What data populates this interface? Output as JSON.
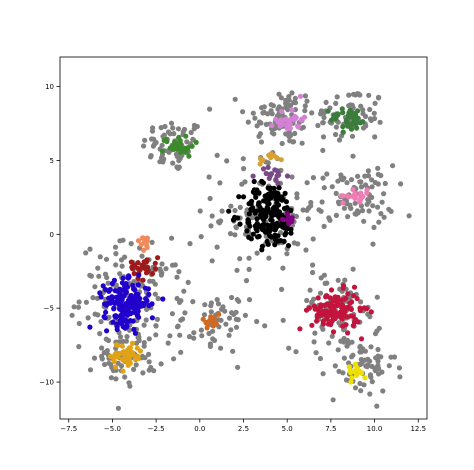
{
  "chart_data": {
    "type": "scatter",
    "title": "",
    "xlabel": "",
    "ylabel": "",
    "xlim": [
      -8,
      13
    ],
    "ylim": [
      -12.5,
      12
    ],
    "xticks": [
      -7.5,
      -5.0,
      -2.5,
      0.0,
      2.5,
      5.0,
      7.5,
      10.0,
      12.5
    ],
    "xtick_labels": [
      "−7.5",
      "−5.0",
      "−2.5",
      "0.0",
      "2.5",
      "5.0",
      "7.5",
      "10.0",
      "12.5"
    ],
    "yticks": [
      -10,
      -5,
      0,
      5,
      10
    ],
    "ytick_labels": [
      "−10",
      "−5",
      "0",
      "5",
      "10"
    ],
    "grid": false,
    "legend": false,
    "noise_color": "#808080",
    "series": [
      {
        "color": "#808080",
        "kind": "noise",
        "cx": -1.5,
        "cy": 6.0,
        "sx": 0.9,
        "sy": 0.9,
        "n": 70
      },
      {
        "color": "#808080",
        "kind": "noise",
        "cx": 4.6,
        "cy": 8.0,
        "sx": 1.0,
        "sy": 1.0,
        "n": 80
      },
      {
        "color": "#808080",
        "kind": "noise",
        "cx": 8.6,
        "cy": 8.0,
        "sx": 1.0,
        "sy": 1.0,
        "n": 70
      },
      {
        "color": "#808080",
        "kind": "noise",
        "cx": 3.8,
        "cy": 1.5,
        "sx": 1.5,
        "sy": 2.0,
        "n": 120
      },
      {
        "color": "#808080",
        "kind": "noise",
        "cx": 8.9,
        "cy": 2.5,
        "sx": 1.1,
        "sy": 1.1,
        "n": 80
      },
      {
        "color": "#808080",
        "kind": "noise",
        "cx": -3.8,
        "cy": -4.2,
        "sx": 1.5,
        "sy": 1.8,
        "n": 150
      },
      {
        "color": "#808080",
        "kind": "noise",
        "cx": -4.2,
        "cy": -8.3,
        "sx": 0.9,
        "sy": 0.9,
        "n": 60
      },
      {
        "color": "#808080",
        "kind": "noise",
        "cx": 0.8,
        "cy": -6.0,
        "sx": 1.0,
        "sy": 1.0,
        "n": 60
      },
      {
        "color": "#808080",
        "kind": "noise",
        "cx": 7.8,
        "cy": -5.2,
        "sx": 1.3,
        "sy": 1.3,
        "n": 90
      },
      {
        "color": "#808080",
        "kind": "noise",
        "cx": 9.2,
        "cy": -9.0,
        "sx": 1.0,
        "sy": 1.0,
        "n": 70
      },
      {
        "color": "#3d8a2c",
        "cx": -1.2,
        "cy": 6.0,
        "sx": 0.45,
        "sy": 0.35,
        "n": 30
      },
      {
        "color": "#d580d5",
        "cx": 5.1,
        "cy": 7.8,
        "sx": 0.4,
        "sy": 0.45,
        "n": 30
      },
      {
        "color": "#3a7d3a",
        "cx": 8.6,
        "cy": 7.8,
        "sx": 0.55,
        "sy": 0.4,
        "n": 40
      },
      {
        "color": "#d9a033",
        "cx": 4.0,
        "cy": 5.1,
        "sx": 0.3,
        "sy": 0.22,
        "n": 10
      },
      {
        "color": "#7a4a86",
        "cx": 4.1,
        "cy": 4.0,
        "sx": 0.4,
        "sy": 0.3,
        "n": 18
      },
      {
        "color": "#000000",
        "cx": 4.0,
        "cy": 1.3,
        "sx": 0.75,
        "sy": 1.1,
        "n": 180
      },
      {
        "color": "#800080",
        "cx": 5.1,
        "cy": 1.1,
        "sx": 0.18,
        "sy": 0.18,
        "n": 8
      },
      {
        "color": "#f07cb4",
        "cx": 9.0,
        "cy": 2.6,
        "sx": 0.4,
        "sy": 0.2,
        "n": 22
      },
      {
        "color": "#f08a5d",
        "cx": -3.3,
        "cy": -0.5,
        "sx": 0.3,
        "sy": 0.25,
        "n": 12
      },
      {
        "color": "#9e1a1a",
        "cx": -3.2,
        "cy": -2.2,
        "sx": 0.4,
        "sy": 0.4,
        "n": 30
      },
      {
        "color": "#2200cc",
        "cx": -4.2,
        "cy": -4.7,
        "sx": 0.65,
        "sy": 0.75,
        "n": 170
      },
      {
        "color": "#e1a216",
        "cx": -4.2,
        "cy": -8.2,
        "sx": 0.45,
        "sy": 0.45,
        "n": 50
      },
      {
        "color": "#d2691e",
        "cx": 0.6,
        "cy": -5.8,
        "sx": 0.3,
        "sy": 0.3,
        "n": 15
      },
      {
        "color": "#c2143c",
        "cx": 7.8,
        "cy": -5.2,
        "sx": 0.7,
        "sy": 0.65,
        "n": 120
      },
      {
        "color": "#f0e000",
        "cx": 9.0,
        "cy": -9.2,
        "sx": 0.3,
        "sy": 0.3,
        "n": 15
      }
    ]
  }
}
